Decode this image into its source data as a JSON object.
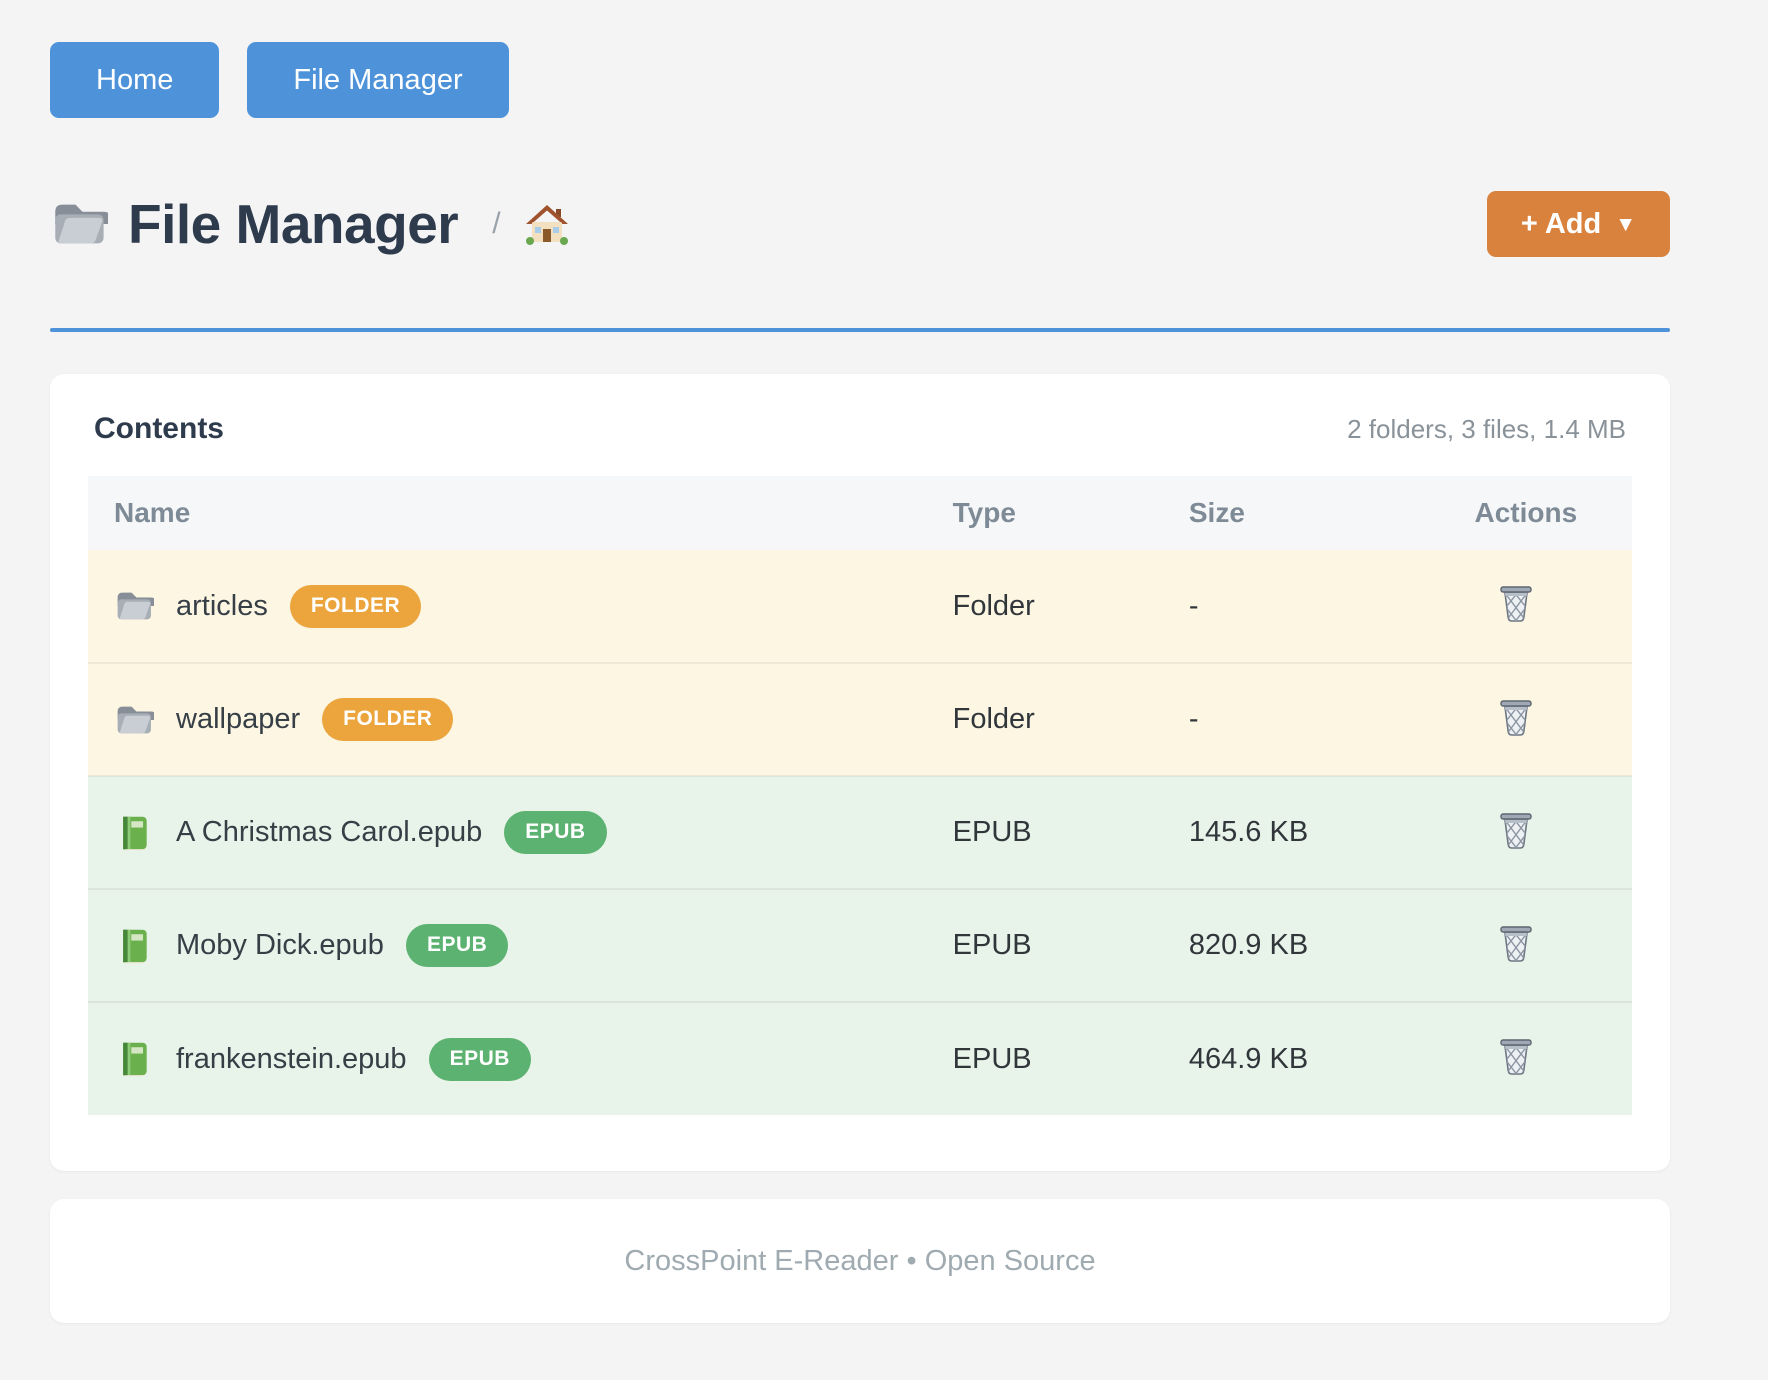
{
  "nav": {
    "buttons": [
      {
        "label": "Home"
      },
      {
        "label": "File Manager"
      }
    ]
  },
  "header": {
    "title": "File Manager",
    "title_icon": "folder-icon",
    "breadcrumb_separator": "/",
    "breadcrumb_home_icon": "house-icon",
    "add_button_label": "+ Add",
    "add_button_caret": "▼"
  },
  "contents": {
    "title": "Contents",
    "summary": "2 folders, 3 files, 1.4 MB",
    "columns": [
      "Name",
      "Type",
      "Size",
      "Actions"
    ],
    "rows": [
      {
        "name": "articles",
        "icon": "folder-icon",
        "badge": "FOLDER",
        "kind": "folder",
        "type": "Folder",
        "size": "-",
        "action_icon": "trash-icon"
      },
      {
        "name": "wallpaper",
        "icon": "folder-icon",
        "badge": "FOLDER",
        "kind": "folder",
        "type": "Folder",
        "size": "-",
        "action_icon": "trash-icon"
      },
      {
        "name": "A Christmas Carol.epub",
        "icon": "book-icon",
        "badge": "EPUB",
        "kind": "epub",
        "type": "EPUB",
        "size": "145.6 KB",
        "action_icon": "trash-icon"
      },
      {
        "name": "Moby Dick.epub",
        "icon": "book-icon",
        "badge": "EPUB",
        "kind": "epub",
        "type": "EPUB",
        "size": "820.9 KB",
        "action_icon": "trash-icon"
      },
      {
        "name": "frankenstein.epub",
        "icon": "book-icon",
        "badge": "EPUB",
        "kind": "epub",
        "type": "EPUB",
        "size": "464.9 KB",
        "action_icon": "trash-icon"
      }
    ]
  },
  "footer": {
    "text": "CrossPoint E-Reader • Open Source"
  },
  "colors": {
    "primary_blue": "#4e93d9",
    "accent_orange": "#d9823e",
    "folder_badge": "#eca43d",
    "epub_badge": "#5cb270",
    "folder_row_bg": "#fdf6e3",
    "epub_row_bg": "#e8f3e9",
    "header_row_bg": "#f5f7f9",
    "title_color": "#2d3b4d"
  }
}
